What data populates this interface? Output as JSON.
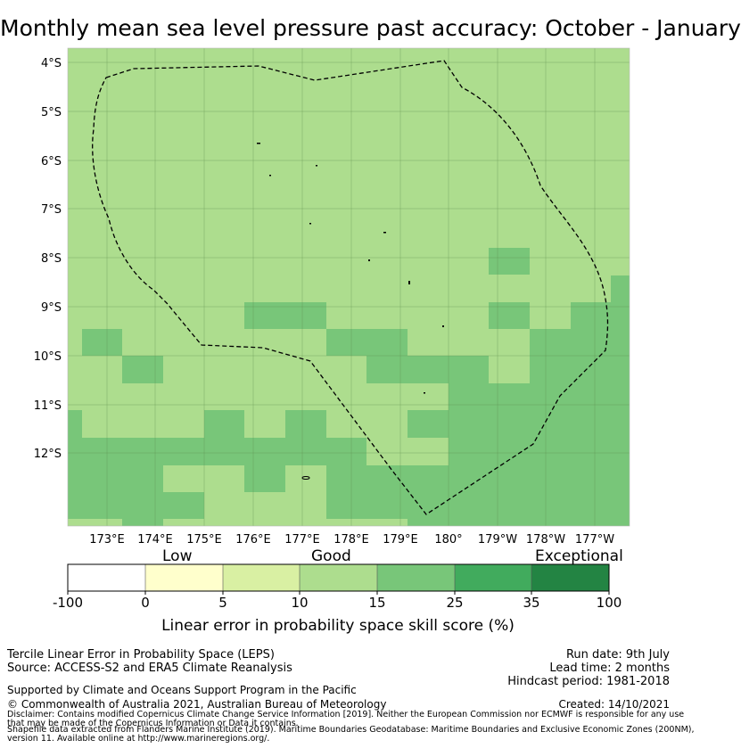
{
  "title": "Monthly mean sea level pressure past accuracy: October - January",
  "map": {
    "lat_labels": [
      "4°S",
      "5°S",
      "6°S",
      "7°S",
      "8°S",
      "9°S",
      "10°S",
      "11°S",
      "12°S"
    ],
    "lon_labels": [
      "173°E",
      "174°E",
      "175°E",
      "176°E",
      "177°E",
      "178°E",
      "179°E",
      "180°",
      "179°W",
      "178°W",
      "177°W"
    ]
  },
  "colorbar": {
    "categories": [
      "Low",
      "Good",
      "Exceptional"
    ],
    "ticks": [
      "-100",
      "0",
      "5",
      "10",
      "15",
      "25",
      "35",
      "100"
    ],
    "colors": [
      "#ffffff",
      "#ffffcc",
      "#d9f0a3",
      "#addd8e",
      "#78c679",
      "#41ab5d",
      "#238443"
    ],
    "label": "Linear error in probability space skill score (%)"
  },
  "footer": {
    "method": "Tercile Linear Error in Probability Space (LEPS)",
    "source": "Source: ACCESS-S2 and ERA5 Climate Reanalysis",
    "support": "Supported by Climate and Oceans Support Program in the Pacific",
    "copyright": "© Commonwealth of Australia 2021, Australian Bureau of Meteorology",
    "run_date": "Run date: 9th July",
    "lead_time": "Lead time: 2 months",
    "hindcast": "Hindcast period: 1981-2018",
    "created": "Created: 14/10/2021",
    "disclaimer1": "Disclaimer: Contains modified Copernicus Climate Change Service Information [2019]. Neither the European Commission nor ECMWF is responsible for any use",
    "disclaimer2": "that may be made of the Copernicus Information or Data it contains.",
    "shapefile1": "Shapefile data extracted from Flanders Marine Institute (2019). Maritime Boundaries Geodatabase: Maritime Boundaries and Exclusive Economic Zones (200NM),",
    "shapefile2": "version 11. Available online at http://www.marineregions.org/."
  }
}
